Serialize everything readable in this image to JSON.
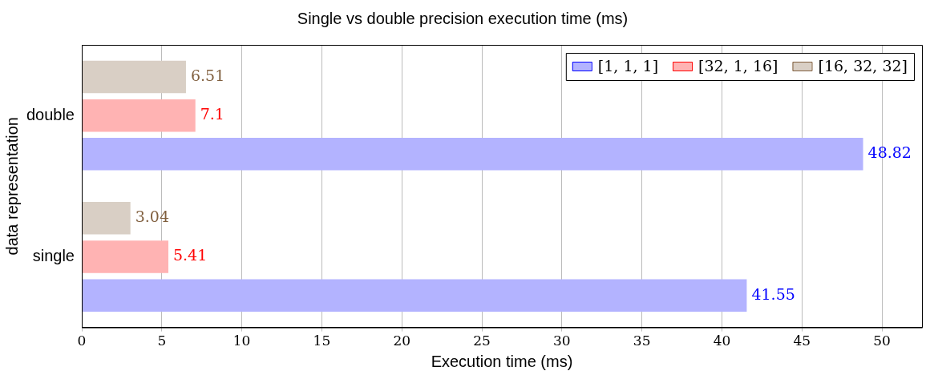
{
  "chart_data": {
    "type": "bar",
    "orientation": "horizontal",
    "title": "Single vs double precision execution time (ms)",
    "xlabel": "Execution time (ms)",
    "ylabel": "data representation",
    "categories": [
      "double",
      "single"
    ],
    "series": [
      {
        "name": "[1, 1, 1]",
        "color": "#b3b3ff",
        "values": [
          48.82,
          41.55
        ]
      },
      {
        "name": "[32, 1, 16]",
        "color": "#ffb3b3",
        "values": [
          7.1,
          5.41
        ]
      },
      {
        "name": "[16, 32, 32]",
        "color": "#d9cfc5",
        "values": [
          6.51,
          3.04
        ]
      }
    ],
    "xlim": [
      0,
      52.5
    ],
    "xticks": [
      0,
      5,
      10,
      15,
      20,
      25,
      30,
      35,
      40,
      45,
      50
    ],
    "grid": "x",
    "legend": "top right",
    "data_labels": true
  }
}
